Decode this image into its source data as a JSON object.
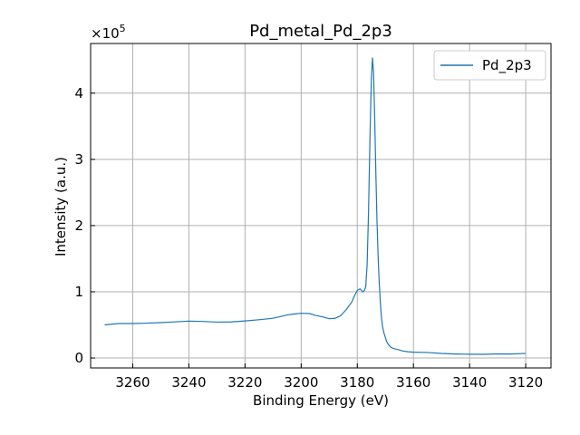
{
  "chart_data": {
    "type": "line",
    "title": "Pd_metal_Pd_2p3",
    "xlabel": "Binding Energy (eV)",
    "ylabel": "Intensity (a.u.)",
    "y_multiplier_label": "×10",
    "y_multiplier_exp": "5",
    "xlim": [
      3275,
      3111
    ],
    "x_reversed": true,
    "ylim": [
      -0.15,
      4.75
    ],
    "y_scale": 100000,
    "x_ticks": [
      3260,
      3240,
      3220,
      3200,
      3180,
      3160,
      3140,
      3120
    ],
    "y_ticks": [
      0,
      1,
      2,
      3,
      4
    ],
    "grid": true,
    "legend_position": "top-right",
    "series": [
      {
        "name": "Pd_2p3",
        "color": "#1f77b4",
        "x": [
          3270,
          3265,
          3260,
          3255,
          3250,
          3245,
          3240,
          3235,
          3230,
          3225,
          3220,
          3215,
          3210,
          3205,
          3202,
          3200,
          3197,
          3195,
          3192,
          3190,
          3188,
          3186,
          3184,
          3182,
          3181,
          3180,
          3179,
          3178,
          3177.5,
          3177,
          3176.5,
          3176,
          3175.5,
          3175,
          3174.6,
          3174.2,
          3173.8,
          3173.4,
          3173,
          3172.6,
          3172.2,
          3171.8,
          3171.4,
          3171,
          3170.5,
          3170,
          3169.5,
          3169,
          3168,
          3167,
          3166,
          3165,
          3164,
          3162,
          3160,
          3155,
          3150,
          3145,
          3140,
          3135,
          3130,
          3125,
          3120
        ],
        "y": [
          0.5,
          0.51,
          0.52,
          0.52,
          0.53,
          0.54,
          0.55,
          0.55,
          0.55,
          0.55,
          0.56,
          0.58,
          0.61,
          0.65,
          0.67,
          0.67,
          0.66,
          0.64,
          0.61,
          0.59,
          0.59,
          0.63,
          0.72,
          0.85,
          0.95,
          1.03,
          1.05,
          1.01,
          1.03,
          1.08,
          1.4,
          2.2,
          3.3,
          4.2,
          4.53,
          4.3,
          3.6,
          2.8,
          2.1,
          1.55,
          1.15,
          0.85,
          0.62,
          0.48,
          0.38,
          0.3,
          0.24,
          0.2,
          0.16,
          0.14,
          0.13,
          0.12,
          0.11,
          0.1,
          0.095,
          0.085,
          0.075,
          0.07,
          0.065,
          0.065,
          0.06,
          0.06,
          0.06
        ]
      }
    ]
  }
}
